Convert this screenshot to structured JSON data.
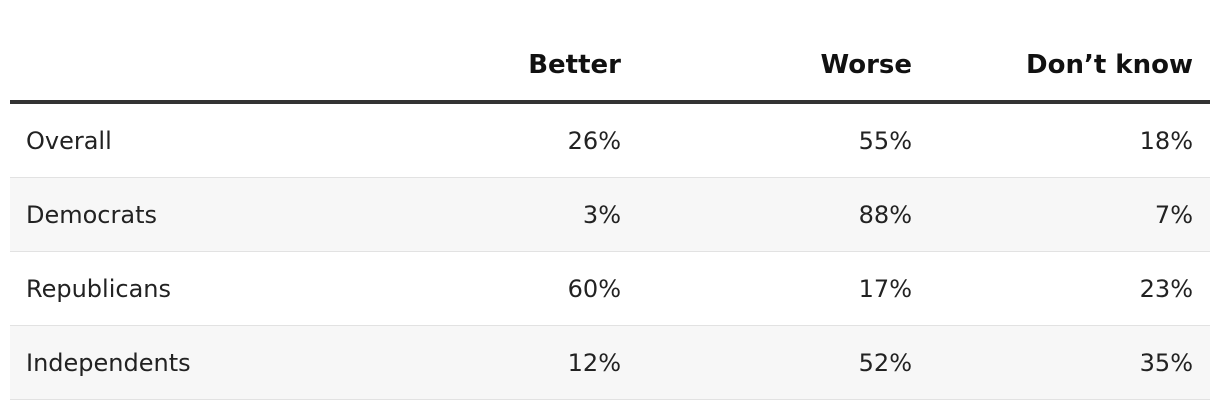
{
  "table": {
    "columns": [
      "Better",
      "Worse",
      "Don’t know"
    ],
    "rows": [
      [
        "Overall",
        "26%",
        "55%",
        "18%"
      ],
      [
        "Democrats",
        "3%",
        "88%",
        "7%"
      ],
      [
        "Republicans",
        "60%",
        "17%",
        "23%"
      ],
      [
        "Independents",
        "12%",
        "52%",
        "35%"
      ]
    ]
  }
}
